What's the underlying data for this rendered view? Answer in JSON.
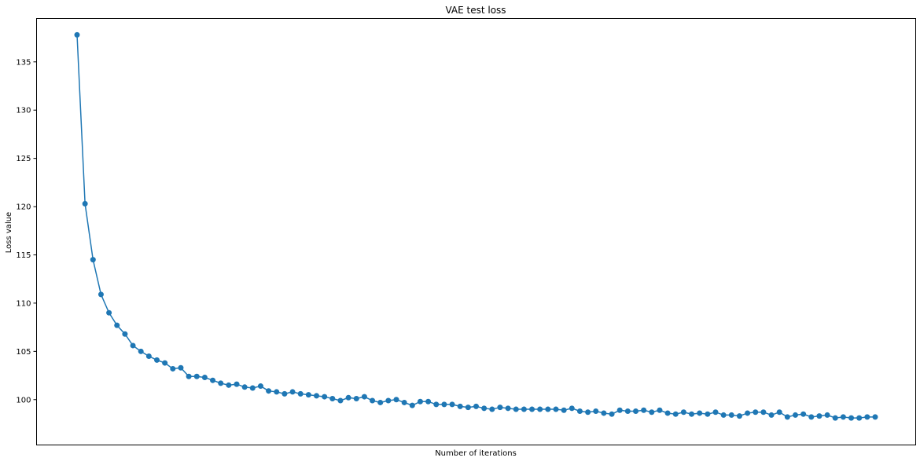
{
  "chart_data": {
    "type": "line",
    "title": "VAE test loss",
    "xlabel": "Number of iterations",
    "ylabel": "Loss value",
    "show_x_ticks": false,
    "markers": true,
    "grid": false,
    "ylim": [
      95.3,
      139.5
    ],
    "yticks": [
      100,
      105,
      110,
      115,
      120,
      125,
      130,
      135
    ],
    "x": [
      1,
      2,
      3,
      4,
      5,
      6,
      7,
      8,
      9,
      10,
      11,
      12,
      13,
      14,
      15,
      16,
      17,
      18,
      19,
      20,
      21,
      22,
      23,
      24,
      25,
      26,
      27,
      28,
      29,
      30,
      31,
      32,
      33,
      34,
      35,
      36,
      37,
      38,
      39,
      40,
      41,
      42,
      43,
      44,
      45,
      46,
      47,
      48,
      49,
      50,
      51,
      52,
      53,
      54,
      55,
      56,
      57,
      58,
      59,
      60,
      61,
      62,
      63,
      64,
      65,
      66,
      67,
      68,
      69,
      70,
      71,
      72,
      73,
      74,
      75,
      76,
      77,
      78,
      79,
      80,
      81,
      82,
      83,
      84,
      85,
      86,
      87,
      88,
      89,
      90,
      91,
      92,
      93,
      94,
      95,
      96,
      97,
      98,
      99,
      100,
      101
    ],
    "series": [
      {
        "name": "",
        "color": "#1f77b4",
        "values": [
          137.8,
          120.3,
          114.5,
          110.9,
          109.0,
          107.7,
          106.8,
          105.6,
          105.0,
          104.5,
          104.1,
          103.8,
          103.2,
          103.3,
          102.4,
          102.4,
          102.3,
          102.0,
          101.7,
          101.5,
          101.6,
          101.3,
          101.2,
          101.4,
          100.9,
          100.8,
          100.6,
          100.8,
          100.6,
          100.5,
          100.4,
          100.3,
          100.1,
          99.9,
          100.2,
          100.1,
          100.3,
          99.9,
          99.7,
          99.9,
          100.0,
          99.7,
          99.4,
          99.8,
          99.8,
          99.5,
          99.5,
          99.5,
          99.3,
          99.2,
          99.3,
          99.1,
          99.0,
          99.2,
          99.1,
          99.0,
          99.0,
          99.0,
          99.0,
          99.0,
          99.0,
          98.9,
          99.1,
          98.8,
          98.7,
          98.8,
          98.6,
          98.5,
          98.9,
          98.8,
          98.8,
          98.9,
          98.7,
          98.9,
          98.6,
          98.5,
          98.7,
          98.5,
          98.6,
          98.5,
          98.7,
          98.4,
          98.4,
          98.3,
          98.6,
          98.7,
          98.7,
          98.4,
          98.7,
          98.2,
          98.4,
          98.5,
          98.2,
          98.3,
          98.4,
          98.1,
          98.2,
          98.1,
          98.1,
          98.2,
          98.2
        ]
      }
    ]
  }
}
